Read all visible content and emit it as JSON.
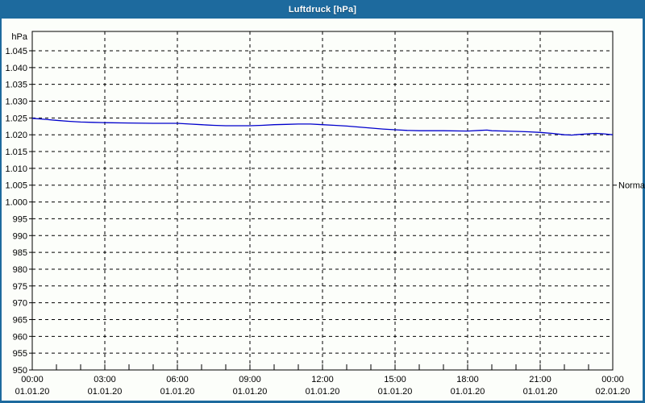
{
  "window": {
    "title": "Luftdruck [hPa]"
  },
  "colors": {
    "frame": "#1d6a9e",
    "titlebar_text": "#ffffff",
    "content_bg": "#fcfefa",
    "grid": "#000000",
    "axis": "#000000",
    "series_line": "#0000cc",
    "label_text": "#000000"
  },
  "chart_data": {
    "type": "line",
    "title": "Luftdruck [hPa]",
    "ylabel": "hPa",
    "unit_label": "hPa",
    "grid": true,
    "grid_style": "dashed",
    "ylim": [
      950,
      1051
    ],
    "y_tick_step": 5,
    "y_ticks": [
      {
        "value": 1045,
        "label": "1.045"
      },
      {
        "value": 1040,
        "label": "1.040"
      },
      {
        "value": 1035,
        "label": "1.035"
      },
      {
        "value": 1030,
        "label": "1.030"
      },
      {
        "value": 1025,
        "label": "1.025"
      },
      {
        "value": 1020,
        "label": "1.020"
      },
      {
        "value": 1015,
        "label": "1.015"
      },
      {
        "value": 1010,
        "label": "1.010"
      },
      {
        "value": 1005,
        "label": "1.005"
      },
      {
        "value": 1000,
        "label": "1.000"
      },
      {
        "value": 995,
        "label": "995"
      },
      {
        "value": 990,
        "label": "990"
      },
      {
        "value": 985,
        "label": "985"
      },
      {
        "value": 980,
        "label": "980"
      },
      {
        "value": 975,
        "label": "975"
      },
      {
        "value": 970,
        "label": "970"
      },
      {
        "value": 965,
        "label": "965"
      },
      {
        "value": 960,
        "label": "960"
      },
      {
        "value": 955,
        "label": "955"
      },
      {
        "value": 950,
        "label": "950"
      }
    ],
    "xlim_hours": [
      0,
      24
    ],
    "x_minor_tick_step_hours": 1,
    "x_ticks": [
      {
        "hour": 0,
        "time": "00:00",
        "date": "01.01.20"
      },
      {
        "hour": 3,
        "time": "03:00",
        "date": "01.01.20"
      },
      {
        "hour": 6,
        "time": "06:00",
        "date": "01.01.20"
      },
      {
        "hour": 9,
        "time": "09:00",
        "date": "01.01.20"
      },
      {
        "hour": 12,
        "time": "12:00",
        "date": "01.01.20"
      },
      {
        "hour": 15,
        "time": "15:00",
        "date": "01.01.20"
      },
      {
        "hour": 18,
        "time": "18:00",
        "date": "01.01.20"
      },
      {
        "hour": 21,
        "time": "21:00",
        "date": "01.01.20"
      },
      {
        "hour": 24,
        "time": "00:00",
        "date": "02.01.20"
      }
    ],
    "annotation": {
      "label": "Normal",
      "value": 1005,
      "side": "right"
    },
    "series": [
      {
        "name": "Luftdruck",
        "x_hours": [
          0,
          0.5,
          1,
          1.5,
          2,
          2.5,
          3,
          4,
          5,
          6,
          6.5,
          7,
          7.5,
          8,
          8.5,
          9,
          9.5,
          10,
          10.5,
          11,
          11.5,
          12,
          12.5,
          13,
          13.5,
          14,
          14.5,
          15,
          15.5,
          16,
          16.5,
          17,
          18,
          18.5,
          18.8,
          19,
          20,
          20.5,
          21,
          21.5,
          22,
          22.3,
          22.6,
          23,
          23.3,
          23.6,
          24
        ],
        "values": [
          1024.9,
          1024.6,
          1024.3,
          1024.0,
          1023.8,
          1023.7,
          1023.6,
          1023.5,
          1023.4,
          1023.4,
          1023.2,
          1023.0,
          1022.8,
          1022.7,
          1022.7,
          1022.7,
          1022.8,
          1023.0,
          1023.1,
          1023.2,
          1023.2,
          1023.0,
          1022.8,
          1022.6,
          1022.3,
          1022.0,
          1021.7,
          1021.5,
          1021.3,
          1021.2,
          1021.2,
          1021.2,
          1021.1,
          1021.3,
          1021.4,
          1021.2,
          1021.0,
          1020.9,
          1020.7,
          1020.4,
          1020.0,
          1019.9,
          1020.1,
          1020.3,
          1020.4,
          1020.3,
          1020.0
        ]
      }
    ]
  }
}
